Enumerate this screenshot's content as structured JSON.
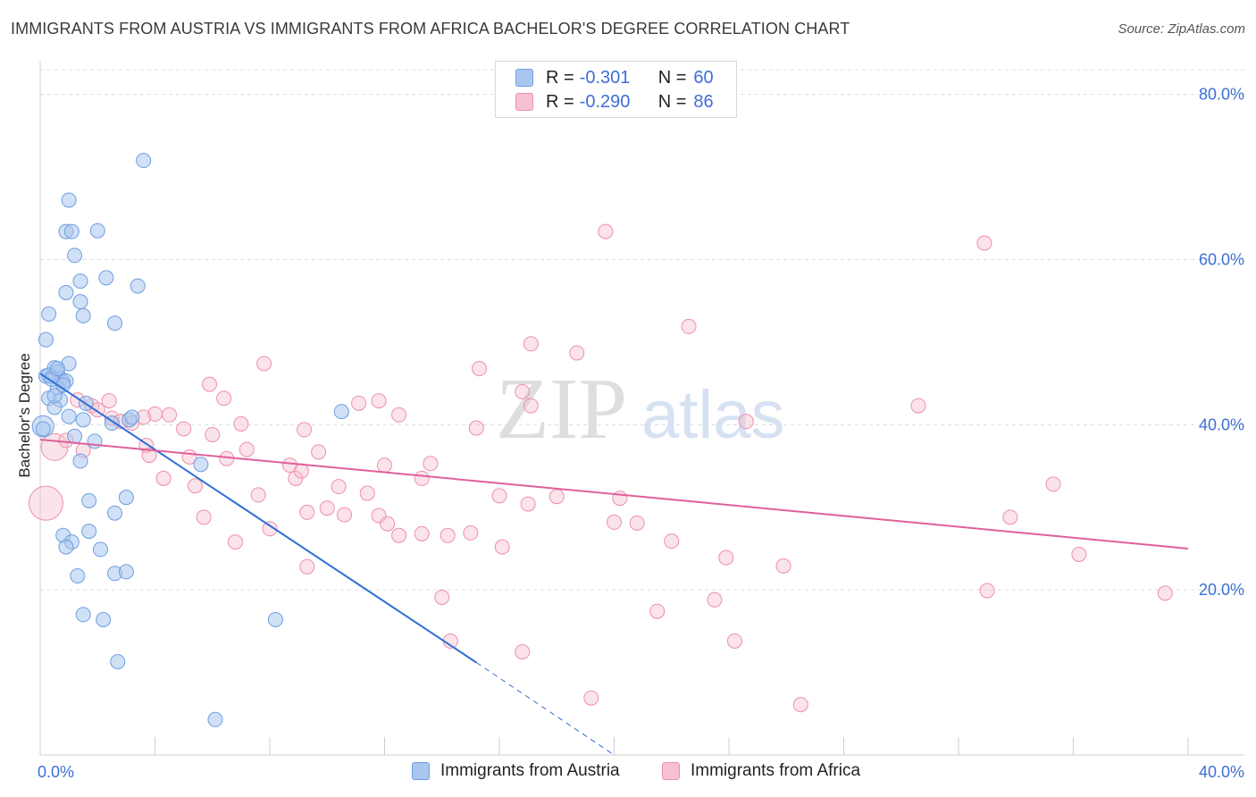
{
  "title": "IMMIGRANTS FROM AUSTRIA VS IMMIGRANTS FROM AFRICA BACHELOR'S DEGREE CORRELATION CHART",
  "source": "Source: ZipAtlas.com",
  "watermark": {
    "zip": "ZIP",
    "atlas": "atlas"
  },
  "legend": {
    "rows": [
      {
        "r_label": "R =",
        "r_value": "-0.301",
        "n_label": "N =",
        "n_value": "60",
        "color": "#a9c6ef",
        "border": "#6f9ee0"
      },
      {
        "r_label": "R =",
        "r_value": "-0.290",
        "n_label": "N =",
        "n_value": "86",
        "color": "#f6c2d1",
        "border": "#ec8fab"
      }
    ]
  },
  "bottom_legend": [
    {
      "label": "Immigrants from Austria",
      "color": "#a9c6ef",
      "border": "#6f9ee0"
    },
    {
      "label": "Immigrants from Africa",
      "color": "#f6c2d1",
      "border": "#ec8fab"
    }
  ],
  "chart_data": {
    "type": "scatter",
    "title": "IMMIGRANTS FROM AUSTRIA VS IMMIGRANTS FROM AFRICA BACHELOR'S DEGREE CORRELATION CHART",
    "xlabel": "",
    "ylabel": "Bachelor's Degree",
    "xlim": [
      0,
      40
    ],
    "ylim": [
      0,
      83
    ],
    "x_tick_labels": {
      "left": "0.0%",
      "right": "40.0%"
    },
    "y_ticks": [
      {
        "value": 20,
        "label": "20.0%"
      },
      {
        "value": 40,
        "label": "40.0%"
      },
      {
        "value": 60,
        "label": "60.0%"
      },
      {
        "value": 80,
        "label": "80.0%"
      }
    ],
    "grid": true,
    "series": [
      {
        "name": "Immigrants from Austria",
        "color": "#7aa7e6",
        "line_color": "#2f6fd6",
        "trend": {
          "x0": 0,
          "y0": 46.2,
          "x1": 15.2,
          "y1": 11.2,
          "dash_to_x": 20,
          "dash_to_y": 0
        },
        "points": [
          [
            3.6,
            72.0
          ],
          [
            1.0,
            67.2
          ],
          [
            0.9,
            63.4
          ],
          [
            1.1,
            63.4
          ],
          [
            2.0,
            63.5
          ],
          [
            1.2,
            60.5
          ],
          [
            2.3,
            57.8
          ],
          [
            1.4,
            57.4
          ],
          [
            3.4,
            56.8
          ],
          [
            0.9,
            56.0
          ],
          [
            1.4,
            54.9
          ],
          [
            1.5,
            53.2
          ],
          [
            0.3,
            53.4
          ],
          [
            2.6,
            52.3
          ],
          [
            0.2,
            50.3
          ],
          [
            1.0,
            47.4
          ],
          [
            0.5,
            46.9
          ],
          [
            0.6,
            46.4
          ],
          [
            0.2,
            45.9
          ],
          [
            0.4,
            45.8
          ],
          [
            0.7,
            45.6
          ],
          [
            0.8,
            45.2
          ],
          [
            0.9,
            45.3
          ],
          [
            0.6,
            44.5
          ],
          [
            0.3,
            43.2
          ],
          [
            0.7,
            43.0
          ],
          [
            1.6,
            42.6
          ],
          [
            0.5,
            42.1
          ],
          [
            1.5,
            40.6
          ],
          [
            3.1,
            40.6
          ],
          [
            3.2,
            40.9
          ],
          [
            10.5,
            41.6
          ],
          [
            0.1,
            39.5
          ],
          [
            1.2,
            38.6
          ],
          [
            1.9,
            38.0
          ],
          [
            1.4,
            35.6
          ],
          [
            5.6,
            35.2
          ],
          [
            3.0,
            31.2
          ],
          [
            1.7,
            30.8
          ],
          [
            2.6,
            29.3
          ],
          [
            0.8,
            26.6
          ],
          [
            1.7,
            27.1
          ],
          [
            1.1,
            25.8
          ],
          [
            0.9,
            25.2
          ],
          [
            2.1,
            24.9
          ],
          [
            1.3,
            21.7
          ],
          [
            2.6,
            22.0
          ],
          [
            3.0,
            22.2
          ],
          [
            1.5,
            17.0
          ],
          [
            2.2,
            16.4
          ],
          [
            8.2,
            16.4
          ],
          [
            2.7,
            11.3
          ],
          [
            6.1,
            4.3
          ],
          [
            0.3,
            46.0
          ],
          [
            0.4,
            45.5
          ],
          [
            0.6,
            46.8
          ],
          [
            1.0,
            41.0
          ],
          [
            0.5,
            43.5
          ],
          [
            2.5,
            40.2
          ],
          [
            0.8,
            44.8
          ]
        ],
        "big_points": [
          [
            0.1,
            39.8,
            12
          ]
        ]
      },
      {
        "name": "Immigrants from Africa",
        "color": "#f1a8be",
        "line_color": "#e0609a",
        "trend": {
          "x0": 0,
          "y0": 38.2,
          "x1": 40,
          "y1": 25.0
        },
        "points": [
          [
            19.7,
            63.4
          ],
          [
            32.9,
            62.0
          ],
          [
            22.6,
            51.9
          ],
          [
            17.1,
            49.8
          ],
          [
            18.7,
            48.7
          ],
          [
            7.8,
            47.4
          ],
          [
            15.3,
            46.8
          ],
          [
            5.9,
            44.9
          ],
          [
            6.4,
            43.2
          ],
          [
            1.8,
            42.3
          ],
          [
            2.4,
            42.9
          ],
          [
            11.1,
            42.6
          ],
          [
            11.8,
            42.9
          ],
          [
            17.1,
            42.3
          ],
          [
            30.6,
            42.3
          ],
          [
            4.0,
            41.3
          ],
          [
            4.5,
            41.2
          ],
          [
            2.5,
            40.8
          ],
          [
            3.2,
            40.2
          ],
          [
            7.0,
            40.1
          ],
          [
            12.5,
            41.2
          ],
          [
            15.2,
            39.6
          ],
          [
            24.6,
            40.4
          ],
          [
            3.7,
            37.5
          ],
          [
            6.0,
            38.8
          ],
          [
            9.2,
            39.4
          ],
          [
            7.2,
            37.0
          ],
          [
            9.7,
            36.7
          ],
          [
            3.8,
            36.3
          ],
          [
            5.2,
            36.1
          ],
          [
            8.7,
            35.1
          ],
          [
            12.0,
            35.1
          ],
          [
            13.6,
            35.3
          ],
          [
            4.3,
            33.5
          ],
          [
            8.9,
            33.5
          ],
          [
            9.1,
            34.4
          ],
          [
            13.3,
            33.5
          ],
          [
            5.4,
            32.6
          ],
          [
            10.4,
            32.5
          ],
          [
            11.4,
            31.7
          ],
          [
            16.0,
            31.4
          ],
          [
            7.6,
            31.5
          ],
          [
            18.0,
            31.3
          ],
          [
            20.2,
            31.1
          ],
          [
            35.3,
            32.8
          ],
          [
            17.0,
            30.4
          ],
          [
            10.0,
            29.9
          ],
          [
            9.3,
            29.4
          ],
          [
            10.6,
            29.1
          ],
          [
            11.8,
            29.0
          ],
          [
            5.7,
            28.8
          ],
          [
            12.1,
            28.0
          ],
          [
            20.0,
            28.2
          ],
          [
            20.8,
            28.1
          ],
          [
            33.8,
            28.8
          ],
          [
            8.0,
            27.4
          ],
          [
            15.0,
            26.9
          ],
          [
            12.5,
            26.6
          ],
          [
            13.3,
            26.8
          ],
          [
            14.2,
            26.6
          ],
          [
            16.1,
            25.2
          ],
          [
            6.8,
            25.8
          ],
          [
            22.0,
            25.9
          ],
          [
            23.9,
            23.9
          ],
          [
            25.9,
            22.9
          ],
          [
            36.2,
            24.3
          ],
          [
            9.3,
            22.8
          ],
          [
            14.0,
            19.1
          ],
          [
            23.5,
            18.8
          ],
          [
            33.0,
            19.9
          ],
          [
            39.2,
            19.6
          ],
          [
            21.5,
            17.4
          ],
          [
            14.3,
            13.8
          ],
          [
            24.2,
            13.8
          ],
          [
            16.8,
            12.5
          ],
          [
            19.2,
            6.9
          ],
          [
            26.5,
            6.1
          ],
          [
            2.0,
            41.8
          ],
          [
            1.3,
            43.0
          ],
          [
            2.8,
            40.4
          ],
          [
            3.6,
            40.9
          ],
          [
            5.0,
            39.5
          ],
          [
            6.5,
            35.9
          ],
          [
            0.9,
            38.1
          ],
          [
            16.8,
            44.0
          ],
          [
            1.5,
            36.9
          ]
        ],
        "big_points": [
          [
            0.5,
            37.3,
            15
          ],
          [
            0.2,
            30.5,
            19
          ]
        ]
      }
    ]
  }
}
